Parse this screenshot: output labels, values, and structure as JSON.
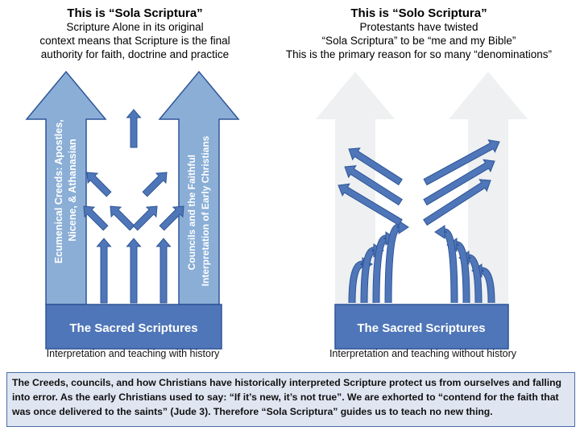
{
  "left_panel": {
    "title": "This is “Sola Scriptura”",
    "lines": [
      "Scripture Alone in its original",
      "context means that Scripture is the final",
      "authority for faith, doctrine and practice"
    ],
    "left_arrow_text": [
      "Ecumenical Creeds: Apostles,",
      "Nicene, & Athanasian"
    ],
    "right_arrow_text": [
      "Councils and the Faithful",
      "Interpretation of Early Christians"
    ],
    "base_label": "The Sacred Scriptures",
    "caption": "Interpretation and teaching with history"
  },
  "right_panel": {
    "title": "This is “Solo Scriptura”",
    "lines": [
      "Protestants have twisted",
      "“Sola Scriptura” to be “me and my Bible”",
      "This is the primary reason for so many “denominations”"
    ],
    "base_label": "The Sacred Scriptures",
    "caption": "Interpretation and teaching without history"
  },
  "footnote": "The Creeds, councils, and how Christians have historically interpreted Scripture protect us from ourselves and falling into error. As the early Christians used to say: “If it’s new, it’s not true”. We are exhorted to “contend for the faith that was once delivered to the saints” (Jude 3). Therefore “Sola Scriptura” guides us to teach no new thing.",
  "colors": {
    "base_box": "#4f76b8",
    "big_arrow": "#8aaed6",
    "small_arrow": "#4f76b8",
    "arrow_stroke": "#2f5597",
    "faded_arrow": "#eef0f2",
    "footnote_bg": "#dfe5f1"
  }
}
